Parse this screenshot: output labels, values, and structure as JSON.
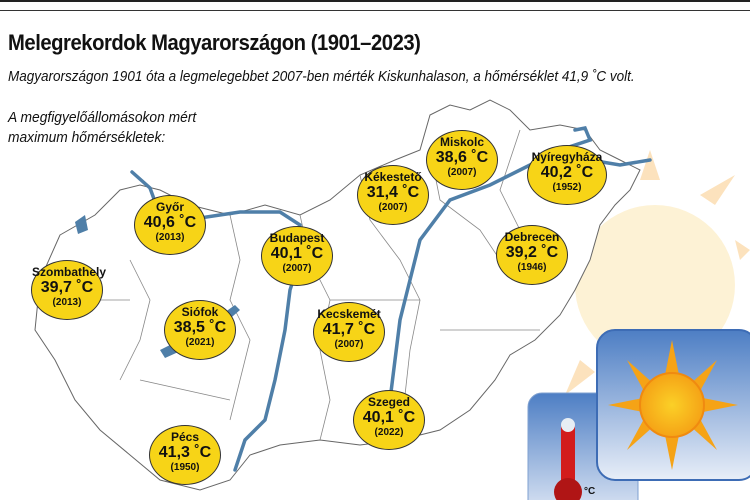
{
  "title": "Melegrekordok Magyarországon (1901–2023)",
  "subtitle": "Magyarországon 1901 óta a legmelegebbet 2007-ben mérték Kiskunhalason, a hőmérséklet 41,9 ˚C volt.",
  "lead_line1": "A megfigyelőállomásokon mért",
  "lead_line2": "maximum hőmérsékletek:",
  "stations": [
    {
      "city": "Győr",
      "temp": "40,6 ˚C",
      "year": "(2013)"
    },
    {
      "city": "Szombathely",
      "temp": "39,7 ˚C",
      "year": "(2013)"
    },
    {
      "city": "Siófok",
      "temp": "38,5 ˚C",
      "year": "(2021)"
    },
    {
      "city": "Pécs",
      "temp": "41,3 ˚C",
      "year": "(1950)"
    },
    {
      "city": "Budapest",
      "temp": "40,1 ˚C",
      "year": "(2007)"
    },
    {
      "city": "Kecskemét",
      "temp": "41,7 ˚C",
      "year": "(2007)"
    },
    {
      "city": "Szeged",
      "temp": "40,1 ˚C",
      "year": "(2022)"
    },
    {
      "city": "Kékestető",
      "temp": "31,4 ˚C",
      "year": "(2007)"
    },
    {
      "city": "Miskolc",
      "temp": "38,6 ˚C",
      "year": "(2007)"
    },
    {
      "city": "Nyíregyháza",
      "temp": "40,2 ˚C",
      "year": "(1952)"
    },
    {
      "city": "Debrecen",
      "temp": "39,2 ˚C",
      "year": "(1946)"
    }
  ],
  "thermometer_unit": "°C",
  "colors": {
    "bubble": "#f7d417",
    "river": "#4f7fa8",
    "sun_bg": "#fbe3b0",
    "icon_blue": "#4d7ec4",
    "sun": "#f7a81b",
    "thermometer": "#d21c1c"
  },
  "icons": [
    "sun-icon",
    "thermometer-icon"
  ]
}
